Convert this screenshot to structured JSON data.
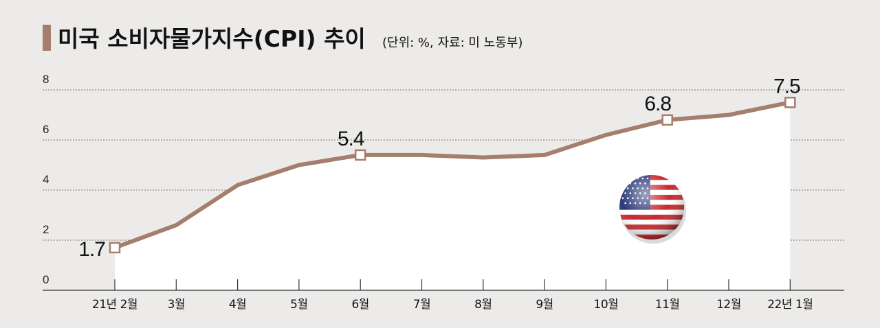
{
  "title": "미국 소비자물가지수(CPI) 추이",
  "subtitle": "(단위: %, 자료: 미 노동부)",
  "colors": {
    "background": "#ecebe9",
    "line": "#a57e6d",
    "title_bar": "#a57e6d",
    "grid": "#777777"
  },
  "icon": "us-flag-icon",
  "chart_data": {
    "type": "line",
    "title": "미국 소비자물가지수(CPI) 추이",
    "subtitle": "(단위: %, 자료: 미 노동부)",
    "categories": [
      "21년 2월",
      "3월",
      "4월",
      "5월",
      "6월",
      "7월",
      "8월",
      "9월",
      "10월",
      "11월",
      "12월",
      "22년 1월"
    ],
    "series": [
      {
        "values": [
          1.7,
          2.6,
          4.2,
          5.0,
          5.4,
          5.4,
          5.3,
          5.4,
          6.2,
          6.8,
          7.0,
          7.5
        ]
      }
    ],
    "data_labels": [
      {
        "index": 0,
        "text": "1.7"
      },
      {
        "index": 4,
        "text": "5.4"
      },
      {
        "index": 9,
        "text": "6.8"
      },
      {
        "index": 11,
        "text": "7.5"
      }
    ],
    "yticks": [
      0,
      2,
      4,
      6,
      8
    ],
    "ylim": [
      0,
      8.3
    ],
    "grid": true,
    "grid_style": "dotted",
    "markers": "hollow square at labeled points"
  }
}
